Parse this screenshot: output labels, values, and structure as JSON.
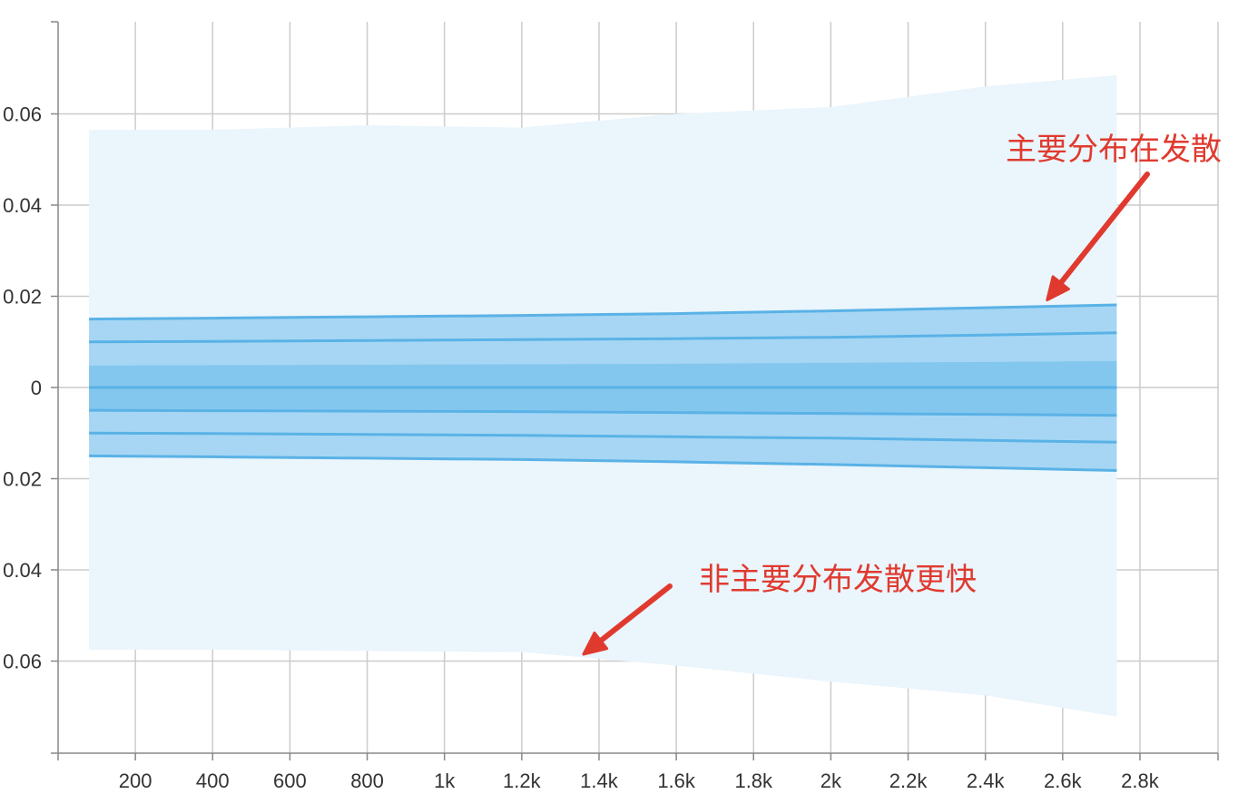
{
  "chart_data": {
    "type": "area",
    "title": "",
    "xlabel": "",
    "ylabel": "",
    "xlim": [
      0,
      3000
    ],
    "ylim": [
      -0.08,
      0.08
    ],
    "grid": true,
    "x_ticks": [
      200,
      400,
      600,
      800,
      1000,
      1200,
      1400,
      1600,
      1800,
      2000,
      2200,
      2400,
      2600,
      2800
    ],
    "x_tick_labels": [
      "200",
      "400",
      "600",
      "800",
      "1k",
      "1.2k",
      "1.4k",
      "1.6k",
      "1.8k",
      "2k",
      "2.2k",
      "2.4k",
      "2.6k",
      "2.8k"
    ],
    "y_ticks": [
      0.06,
      0.04,
      0.02,
      0,
      -0.02,
      -0.04,
      -0.06
    ],
    "y_tick_labels": [
      "0.06",
      "0.04",
      "0.02",
      "0",
      "0.02",
      "0.04",
      "0.06"
    ],
    "x": [
      80,
      400,
      800,
      1200,
      1600,
      2000,
      2400,
      2740
    ],
    "series": [
      {
        "band": "outer-max",
        "values": [
          0.0565,
          0.0565,
          0.0575,
          0.057,
          0.06,
          0.0615,
          0.066,
          0.0685
        ]
      },
      {
        "band": "sigma-upper-2",
        "values": [
          0.015,
          0.0152,
          0.0155,
          0.0158,
          0.0162,
          0.0168,
          0.0175,
          0.0181
        ]
      },
      {
        "band": "sigma-upper-1",
        "values": [
          0.01,
          0.0101,
          0.0103,
          0.0105,
          0.0107,
          0.011,
          0.0115,
          0.012
        ]
      },
      {
        "band": "sigma-upper-half",
        "values": [
          0.0048,
          0.0049,
          0.005,
          0.0051,
          0.0052,
          0.0054,
          0.0056,
          0.0058
        ]
      },
      {
        "band": "median",
        "values": [
          0,
          0,
          0,
          0,
          0,
          0,
          0,
          0
        ]
      },
      {
        "band": "sigma-lower-half",
        "values": [
          -0.005,
          -0.0051,
          -0.0052,
          -0.0053,
          -0.0055,
          -0.0057,
          -0.0059,
          -0.0061
        ]
      },
      {
        "band": "sigma-lower-1",
        "values": [
          -0.01,
          -0.0101,
          -0.0103,
          -0.0105,
          -0.0108,
          -0.0111,
          -0.0116,
          -0.012
        ]
      },
      {
        "band": "sigma-lower-2",
        "values": [
          -0.015,
          -0.0152,
          -0.0155,
          -0.0158,
          -0.0163,
          -0.0169,
          -0.0176,
          -0.0182
        ]
      },
      {
        "band": "outer-min",
        "values": [
          -0.0575,
          -0.0575,
          -0.0578,
          -0.058,
          -0.061,
          -0.0645,
          -0.0675,
          -0.0722
        ]
      }
    ],
    "colors": {
      "outer": "#eaf5fc",
      "band2": "#a6d6f4",
      "band1": "#84c7ee",
      "line": "#5ab2e6",
      "grid": "#cccccc",
      "axis": "#888888",
      "annotation": "#e03a2f"
    },
    "annotations": [
      {
        "text": "主要分布在发散",
        "target_x": 2560,
        "target_y": 0.0192
      },
      {
        "text": "非主要分布发散更快",
        "target_x": 1360,
        "target_y": -0.0585
      }
    ]
  }
}
